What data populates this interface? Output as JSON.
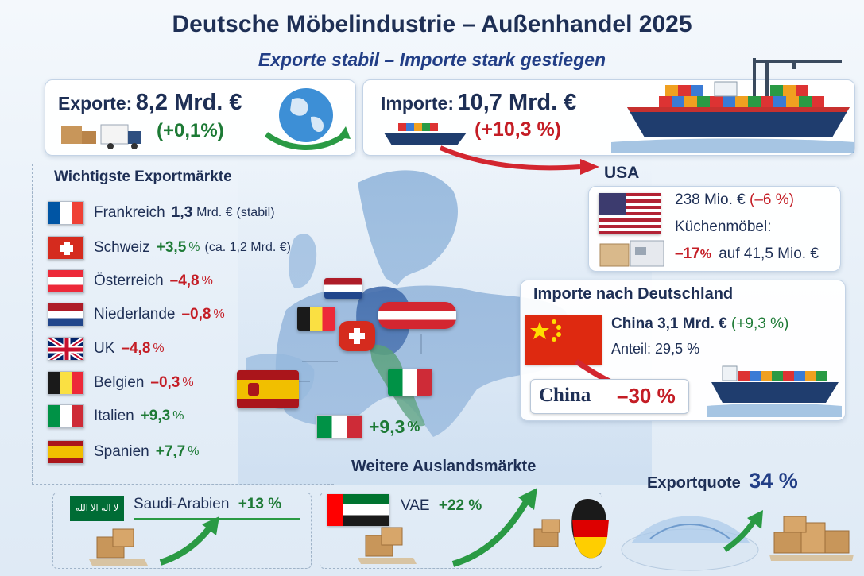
{
  "header": {
    "title": "Deutsche Möbelindustrie – Außenhandel 2025",
    "subtitle": "Exporte stabil – Importe stark gestiegen"
  },
  "exports_box": {
    "label": "Exporte:",
    "value": "8,2 Mrd. €",
    "change": "(+0,1%)"
  },
  "imports_box": {
    "label": "Importe:",
    "value": "10,7 Mrd. €",
    "change": "(+10,3 %)"
  },
  "export_markets": {
    "title": "Wichtigste Exportmärkte",
    "rows": [
      {
        "country": "Frankreich",
        "value": "1,3",
        "unit": "Mrd. €",
        "note": "(stabil)"
      },
      {
        "country": "Schweiz",
        "value": "+3,5",
        "unit": "%",
        "note": "(ca. 1,2 Mrd. €)"
      },
      {
        "country": "Österreich",
        "value": "–4,8",
        "unit": "%"
      },
      {
        "country": "Niederlande",
        "value": "–0,8",
        "unit": "%"
      },
      {
        "country": "UK",
        "value": "–4,8",
        "unit": "%"
      },
      {
        "country": "Belgien",
        "value": "–0,3",
        "unit": "%"
      },
      {
        "country": "Italien",
        "value": "+9,3",
        "unit": "%"
      },
      {
        "country": "Spanien",
        "value": "+7,7",
        "unit": "%"
      }
    ]
  },
  "map_callout": {
    "value": "+9,3",
    "unit": "%"
  },
  "usa": {
    "title": "USA",
    "value": "238 Mio. €",
    "change": "(–6 %)",
    "kitchen_label": "Küchenmöbel:",
    "kitchen_change": "–17",
    "kitchen_unit": "%",
    "kitchen_text": "auf 41,5 Mio. €"
  },
  "imports_germany": {
    "title": "Importe nach Deutschland",
    "country": "China",
    "value": "3,1 Mrd. €",
    "change": "(+9,3 %)",
    "share_label": "Anteil:",
    "share_value": "29,5 %",
    "china_label": "China",
    "china_change": "–30 %"
  },
  "further_markets": {
    "title": "Weitere Auslandsmärkte",
    "saudi_name": "Saudi-Arabien",
    "saudi_change": "+13 %",
    "saudi_flag_text": "لا اله الا الله",
    "uae_name": "VAE",
    "uae_change": "+22 %"
  },
  "export_quote": {
    "label": "Exportquote",
    "value": "34 %"
  },
  "colors": {
    "navy": "#1e2f55",
    "red": "#c41d25",
    "green": "#1d7a35",
    "accent_blue": "#223e86"
  }
}
